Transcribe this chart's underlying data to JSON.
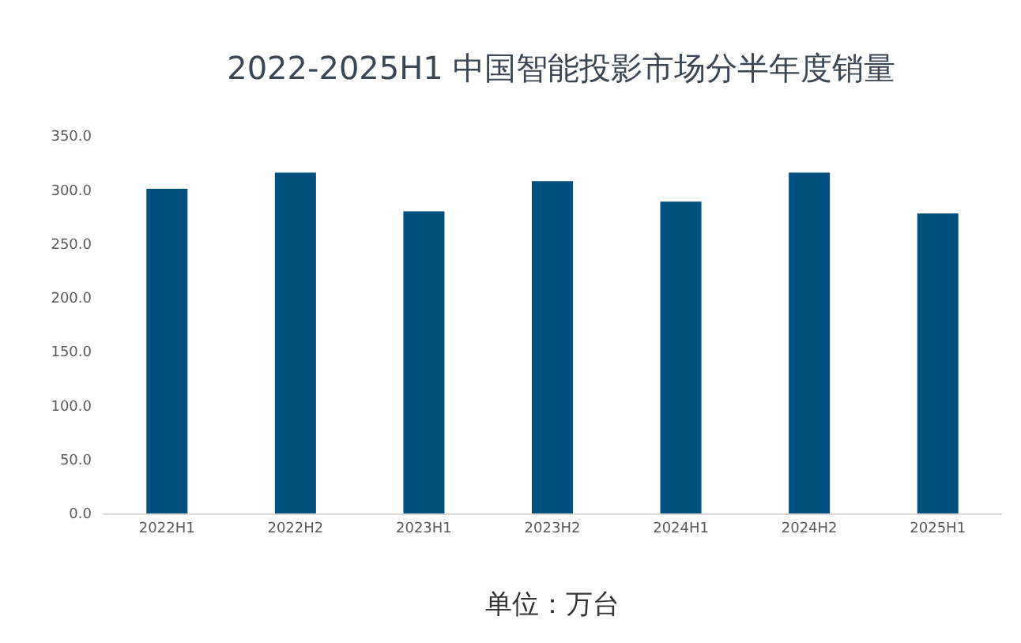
{
  "chart_data": {
    "type": "bar",
    "title": "2022-2025H1 中国智能投影市场分半年度销量",
    "categories": [
      "2022H1",
      "2022H2",
      "2023H1",
      "2023H2",
      "2024H1",
      "2024H2",
      "2025H1"
    ],
    "values": [
      301,
      316,
      280,
      308,
      289,
      316,
      278
    ],
    "color": "#00507f",
    "ylim": [
      0,
      350
    ],
    "yticks": [
      {
        "value": 0,
        "label": "0.0"
      },
      {
        "value": 50,
        "label": "50.0"
      },
      {
        "value": 100,
        "label": "100.0"
      },
      {
        "value": 150,
        "label": "150.0"
      },
      {
        "value": 200,
        "label": "200.0"
      },
      {
        "value": 250,
        "label": "250.0"
      },
      {
        "value": 300,
        "label": "300.0"
      },
      {
        "value": 350,
        "label": "350.0"
      }
    ],
    "annotations": [
      "单位：万台"
    ]
  }
}
